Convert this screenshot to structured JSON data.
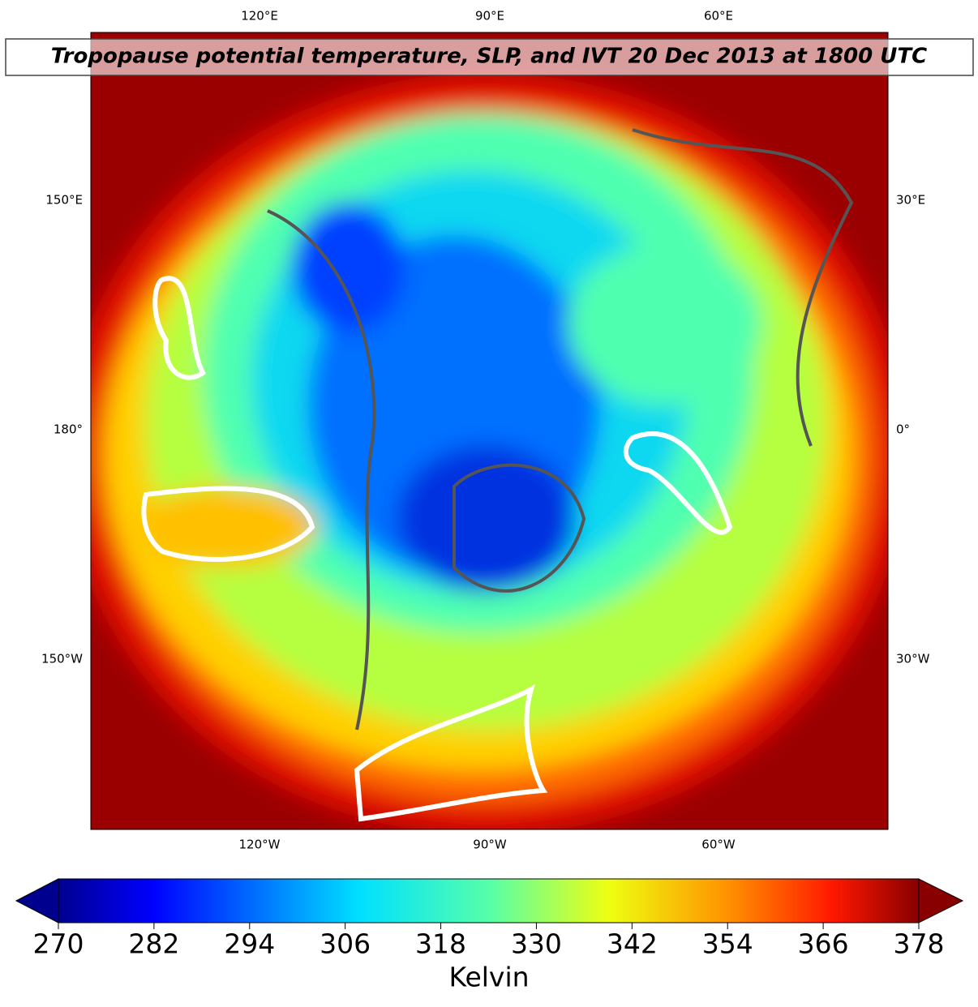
{
  "title": "Tropopause potential temperature, SLP, and IVT 20 Dec 2013 at 1800 UTC",
  "longitude_labels": {
    "top": [
      "120°E",
      "90°E",
      "60°E"
    ],
    "bottom": [
      "120°W",
      "90°W",
      "60°W"
    ],
    "left": [
      "150°E",
      "180°",
      "150°W"
    ],
    "right": [
      "30°E",
      "0°",
      "30°W"
    ]
  },
  "colorbar": {
    "label": "Kelvin",
    "lim": [
      270,
      378
    ],
    "ticks": [
      270,
      282,
      294,
      306,
      318,
      330,
      342,
      354,
      366,
      378
    ]
  }
}
